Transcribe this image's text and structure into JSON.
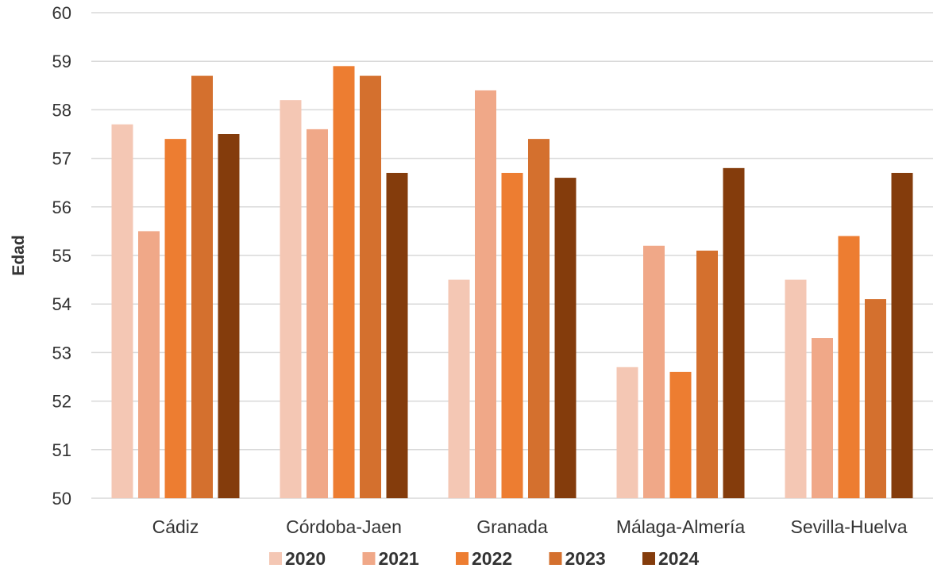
{
  "chart_data": {
    "type": "bar",
    "categories": [
      "Cádiz",
      "Córdoba-Jaen",
      "Granada",
      "Málaga-Almería",
      "Sevilla-Huelva"
    ],
    "series": [
      {
        "name": "2020",
        "color": "#F4C7B4",
        "values": [
          57.7,
          58.2,
          54.5,
          52.7,
          54.5
        ]
      },
      {
        "name": "2021",
        "color": "#F0A888",
        "values": [
          55.5,
          57.6,
          58.4,
          55.2,
          53.3
        ]
      },
      {
        "name": "2022",
        "color": "#ED7D31",
        "values": [
          57.4,
          58.9,
          56.7,
          52.6,
          55.4
        ]
      },
      {
        "name": "2023",
        "color": "#D4702E",
        "values": [
          58.7,
          58.7,
          57.4,
          55.1,
          54.1
        ]
      },
      {
        "name": "2024",
        "color": "#843C0C",
        "values": [
          57.5,
          56.7,
          56.6,
          56.8,
          56.7
        ]
      }
    ],
    "ylabel": "Edad",
    "xlabel": "",
    "ylim": [
      50,
      60
    ],
    "yticks": [
      50,
      51,
      52,
      53,
      54,
      55,
      56,
      57,
      58,
      59,
      60
    ],
    "grid": true,
    "legend_position": "bottom"
  }
}
